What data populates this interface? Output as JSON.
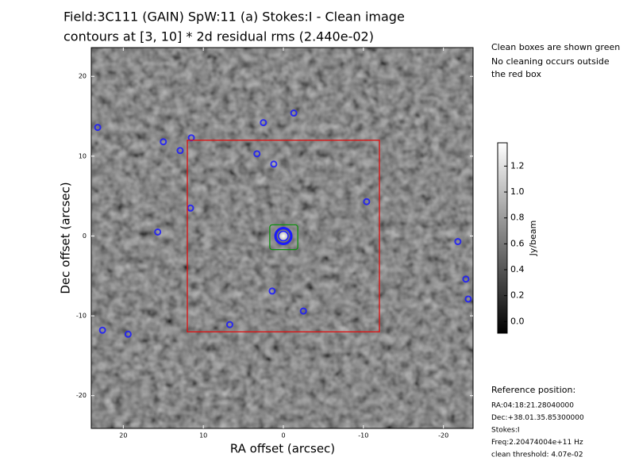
{
  "chart_data": {
    "type": "image",
    "title": [
      "Field:3C111    (GAIN) SpW:11 (a) Stokes:I - Clean image",
      "contours at [3, 10] * 2d residual rms (2.440e-02)"
    ],
    "xlabel": "RA offset (arcsec)",
    "ylabel": "Dec offset (arcsec)",
    "xlim": [
      24,
      -23.7
    ],
    "ylim": [
      -24.1,
      23.6
    ],
    "xticks": [
      20,
      10,
      0,
      -10,
      -20
    ],
    "yticks": [
      20,
      10,
      0,
      -10,
      -20
    ],
    "peak": {
      "x": 0,
      "y": 0
    },
    "sources": {
      "x": [
        23.2,
        15,
        11.5,
        12.9,
        3.3,
        2.5,
        -1.3,
        1.2,
        11.6,
        -10.4,
        -21.8,
        -22.8,
        -23.1,
        1.4,
        -2.5,
        6.7,
        22.6,
        19.4,
        15.7
      ],
      "y": [
        13.6,
        11.8,
        12.3,
        10.7,
        10.3,
        14.2,
        15.4,
        9,
        3.5,
        4.3,
        -0.7,
        -5.4,
        -7.9,
        -6.9,
        -9.4,
        -11.1,
        -11.8,
        -12.3,
        0.5
      ],
      "color": "#1a1aff"
    },
    "clean_box": {
      "x": [
        1.7,
        -1.8
      ],
      "y": [
        1.4,
        -1.7
      ],
      "color": "#109010"
    },
    "outer_box": {
      "x": [
        12,
        -12
      ],
      "y": [
        12,
        -12
      ],
      "color": "#e01010"
    },
    "colorbar": {
      "label": "Jy/beam",
      "lim": [
        -0.09,
        1.38
      ],
      "ticks": [
        {
          "value": 0,
          "label": "0.0"
        },
        0.2,
        0.4,
        0.6,
        0.8,
        {
          "value": 1,
          "label": "1.0"
        },
        1.2
      ]
    },
    "notes": [
      "Clean boxes are shown green",
      "No cleaning occurs outside",
      "the red box"
    ],
    "reference": {
      "heading": "Reference position:",
      "lines": [
        "RA:04:18:21.28040000",
        "Dec:+38.01.35.85300000",
        "Stokes:I",
        "Freq:2.20474004e+11 Hz",
        "clean threshold: 4.07e-02"
      ]
    }
  }
}
